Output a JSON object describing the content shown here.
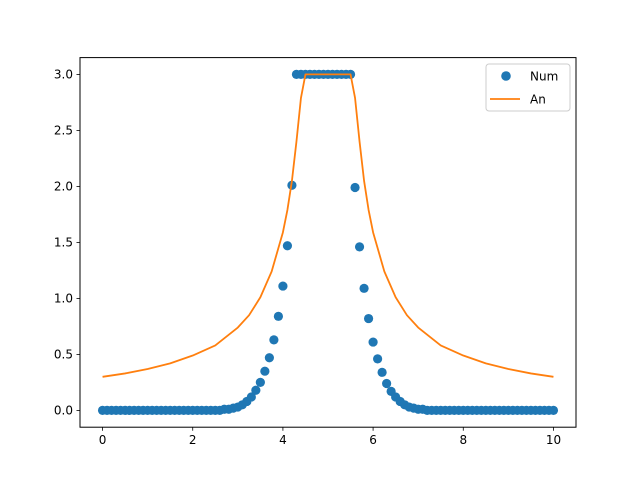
{
  "chart_data": {
    "type": "scatter",
    "title": "",
    "xlabel": "",
    "ylabel": "",
    "xlim": [
      -0.5,
      10.5
    ],
    "ylim": [
      -0.15,
      3.15
    ],
    "xticks": [
      0,
      2,
      4,
      6,
      8,
      10
    ],
    "xtick_labels": [
      "0",
      "2",
      "4",
      "6",
      "8",
      "10"
    ],
    "yticks": [
      0.0,
      0.5,
      1.0,
      1.5,
      2.0,
      2.5,
      3.0
    ],
    "ytick_labels": [
      "0.0",
      "0.5",
      "1.0",
      "1.5",
      "2.0",
      "2.5",
      "3.0"
    ],
    "grid": false,
    "legend_position": "top-right",
    "series": [
      {
        "name": "Num",
        "kind": "scatter",
        "color": "#1f77b4",
        "x": [
          0.0,
          0.1,
          0.2,
          0.3,
          0.4,
          0.5,
          0.6,
          0.7,
          0.8,
          0.9,
          1.0,
          1.1,
          1.2,
          1.3,
          1.4,
          1.5,
          1.6,
          1.7,
          1.8,
          1.9,
          2.0,
          2.1,
          2.2,
          2.3,
          2.4,
          2.5,
          2.6,
          2.7,
          2.8,
          2.9,
          3.0,
          3.1,
          3.2,
          3.3,
          3.4,
          3.5,
          3.6,
          3.7,
          3.8,
          3.9,
          4.0,
          4.1,
          4.2,
          4.3,
          4.4,
          4.5,
          4.6,
          4.7,
          4.8,
          4.9,
          5.0,
          5.1,
          5.2,
          5.3,
          5.4,
          5.5,
          5.6,
          5.7,
          5.8,
          5.9,
          6.0,
          6.1,
          6.2,
          6.3,
          6.4,
          6.5,
          6.6,
          6.7,
          6.8,
          6.9,
          7.0,
          7.1,
          7.2,
          7.3,
          7.4,
          7.5,
          7.6,
          7.7,
          7.8,
          7.9,
          8.0,
          8.1,
          8.2,
          8.3,
          8.4,
          8.5,
          8.6,
          8.7,
          8.8,
          8.9,
          9.0,
          9.1,
          9.2,
          9.3,
          9.4,
          9.5,
          9.6,
          9.7,
          9.8,
          9.9,
          10.0
        ],
        "y": [
          0,
          0,
          0,
          0,
          0,
          0,
          0,
          0,
          0,
          0,
          0,
          0,
          0,
          0,
          0,
          0,
          0,
          0,
          0,
          0,
          0,
          0,
          0,
          0,
          0,
          0,
          0,
          0.01,
          0.01,
          0.02,
          0.03,
          0.05,
          0.08,
          0.12,
          0.18,
          0.25,
          0.35,
          0.47,
          0.63,
          0.84,
          1.11,
          1.47,
          2.01,
          3.0,
          3.0,
          3.0,
          3.0,
          3.0,
          3.0,
          3.0,
          3.0,
          3.0,
          3.0,
          3.0,
          3.0,
          3.0,
          1.99,
          1.46,
          1.09,
          0.82,
          0.61,
          0.46,
          0.34,
          0.24,
          0.17,
          0.12,
          0.08,
          0.05,
          0.03,
          0.02,
          0.01,
          0.01,
          0,
          0,
          0,
          0,
          0,
          0,
          0,
          0,
          0,
          0,
          0,
          0,
          0,
          0,
          0,
          0,
          0,
          0,
          0,
          0,
          0,
          0,
          0,
          0,
          0,
          0,
          0,
          0,
          0
        ]
      },
      {
        "name": "An",
        "kind": "line",
        "color": "#ff7f0e",
        "x": [
          0.0,
          0.5,
          1.0,
          1.5,
          2.0,
          2.5,
          3.0,
          3.25,
          3.5,
          3.75,
          4.0,
          4.1,
          4.2,
          4.3,
          4.4,
          4.5,
          5.0,
          5.5,
          5.6,
          5.7,
          5.8,
          5.9,
          6.0,
          6.25,
          6.5,
          6.75,
          7.0,
          7.5,
          8.0,
          8.5,
          9.0,
          9.5,
          10.0
        ],
        "y": [
          0.3,
          0.33,
          0.37,
          0.42,
          0.49,
          0.58,
          0.74,
          0.85,
          1.01,
          1.24,
          1.59,
          1.79,
          2.05,
          2.4,
          2.79,
          3.0,
          3.0,
          3.0,
          2.79,
          2.4,
          2.05,
          1.79,
          1.59,
          1.24,
          1.01,
          0.85,
          0.74,
          0.58,
          0.49,
          0.42,
          0.37,
          0.33,
          0.3
        ]
      }
    ]
  }
}
